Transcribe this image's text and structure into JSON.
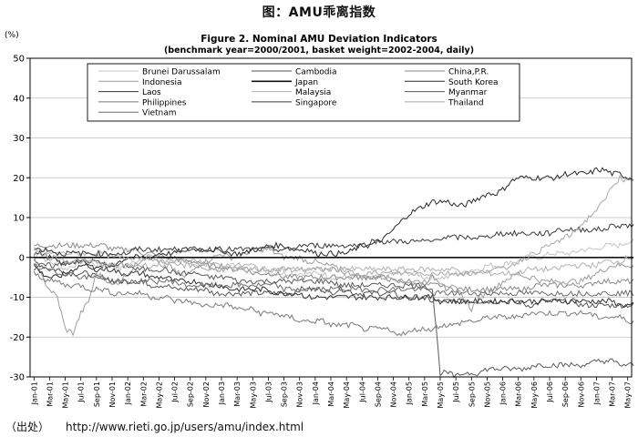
{
  "page": {
    "header": "图：AMU乖离指数",
    "source_label": "（出处）",
    "source_url": "http://www.rieti.go.jp/users/amu/index.html"
  },
  "chart_data": {
    "type": "line",
    "title": "Figure 2. Nominal AMU Deviation Indicators",
    "subtitle": "(benchmark year=2000/2001, basket weight=2002-2004, daily)",
    "ylabel": "(%)",
    "ylim": [
      -30,
      50
    ],
    "yticks": [
      -30,
      -20,
      -10,
      0,
      10,
      20,
      30,
      40,
      50
    ],
    "x_tick_labels": [
      "Jan-01",
      "Mar-01",
      "May-01",
      "Jul-01",
      "Sep-01",
      "Nov-01",
      "Jan-02",
      "Mar-02",
      "May-02",
      "Jul-02",
      "Sep-02",
      "Nov-02",
      "Jan-03",
      "Mar-03",
      "May-03",
      "Jul-03",
      "Sep-03",
      "Nov-03",
      "Jan-04",
      "Mar-04",
      "May-04",
      "Jul-04",
      "Sep-04",
      "Nov-04",
      "Jan-05",
      "Mar-05",
      "May-05",
      "Jul-05",
      "Sep-05",
      "Nov-05",
      "Jan-06",
      "Mar-06",
      "May-06",
      "Jul-06",
      "Sep-06",
      "Nov-06",
      "Jan-07",
      "Mar-07",
      "May-07"
    ],
    "x_months": [
      "Jan-01",
      "Feb-01",
      "Mar-01",
      "Apr-01",
      "May-01",
      "Jun-01",
      "Jul-01",
      "Aug-01",
      "Sep-01",
      "Oct-01",
      "Nov-01",
      "Dec-01",
      "Jan-02",
      "Feb-02",
      "Mar-02",
      "Apr-02",
      "May-02",
      "Jun-02",
      "Jul-02",
      "Aug-02",
      "Sep-02",
      "Oct-02",
      "Nov-02",
      "Dec-02",
      "Jan-03",
      "Feb-03",
      "Mar-03",
      "Apr-03",
      "May-03",
      "Jun-03",
      "Jul-03",
      "Aug-03",
      "Sep-03",
      "Oct-03",
      "Nov-03",
      "Dec-03",
      "Jan-04",
      "Feb-04",
      "Mar-04",
      "Apr-04",
      "May-04",
      "Jun-04",
      "Jul-04",
      "Aug-04",
      "Sep-04",
      "Oct-04",
      "Nov-04",
      "Dec-04",
      "Jan-05",
      "Feb-05",
      "Mar-05",
      "Apr-05",
      "May-05",
      "Jun-05",
      "Jul-05",
      "Aug-05",
      "Sep-05",
      "Oct-05",
      "Nov-05",
      "Dec-05",
      "Jan-06",
      "Feb-06",
      "Mar-06",
      "Apr-06",
      "May-06",
      "Jun-06",
      "Jul-06",
      "Aug-06",
      "Sep-06",
      "Oct-06",
      "Nov-06",
      "Dec-06",
      "Jan-07",
      "Feb-07",
      "Mar-07",
      "Apr-07",
      "May-07"
    ],
    "grid": "horizontal",
    "legend_position": "top-inside",
    "series": [
      {
        "name": "Brunei Darussalam",
        "color": "#c4c4c4",
        "width": 1,
        "values": [
          1,
          0,
          -1,
          -2,
          -3,
          -2,
          -1,
          -1,
          -2,
          -1,
          -2,
          -3,
          -2,
          -1,
          0,
          0,
          1,
          0,
          -1,
          -1,
          -1,
          -2,
          -2,
          -3,
          -3,
          -2,
          -2,
          -3,
          -3,
          -3,
          -4,
          -4,
          -4,
          -4,
          -4,
          -4,
          -4,
          -4,
          -5,
          -5,
          -5,
          -5,
          -5,
          -5,
          -5,
          -5,
          -4,
          -4,
          -4,
          -4,
          -5,
          -5,
          -5,
          -5,
          -4,
          -4,
          -3,
          -3,
          -2,
          -2,
          -2,
          -1,
          -1,
          0,
          0,
          0,
          1,
          1,
          1,
          1,
          2,
          2,
          2,
          3,
          3,
          3,
          4
        ]
      },
      {
        "name": "Cambodia",
        "color": "#555555",
        "width": 1,
        "values": [
          -1,
          -2,
          -3,
          -3,
          -4,
          -4,
          -4,
          -4,
          -5,
          -5,
          -6,
          -6,
          -6,
          -6,
          -6,
          -7,
          -7,
          -7,
          -8,
          -8,
          -8,
          -8,
          -8,
          -9,
          -9,
          -9,
          -9,
          -9,
          -9,
          -9,
          -9,
          -9,
          -9,
          -9,
          -8,
          -8,
          -8,
          -8,
          -9,
          -8,
          -8,
          -9,
          -9,
          -9,
          -9,
          -9,
          -9,
          -10,
          -10,
          -10,
          -10,
          -11,
          -11,
          -11,
          -11,
          -11,
          -11,
          -11,
          -11,
          -11,
          -11,
          -11,
          -11,
          -12,
          -12,
          -11,
          -11,
          -11,
          -11,
          -11,
          -12,
          -12,
          -12,
          -12,
          -12,
          -12,
          -12
        ]
      },
      {
        "name": "China,P.R.",
        "color": "#8a8a8a",
        "width": 1,
        "values": [
          3,
          3,
          3,
          3,
          3,
          3,
          3,
          3,
          3,
          3,
          2,
          2,
          2,
          2,
          1,
          1,
          0,
          0,
          0,
          -1,
          -1,
          -1,
          -2,
          -2,
          -2,
          -3,
          -3,
          -3,
          -4,
          -4,
          -4,
          -4,
          -5,
          -5,
          -5,
          -5,
          -5,
          -5,
          -5,
          -5,
          -5,
          -5,
          -5,
          -5,
          -5,
          -5,
          -6,
          -6,
          -6,
          -7,
          -7,
          -7,
          -7,
          -8,
          -8,
          -8,
          -8,
          -8,
          -8,
          -8,
          -8,
          -8,
          -8,
          -8,
          -7,
          -7,
          -7,
          -7,
          -7,
          -7,
          -7,
          -7,
          -6,
          -6,
          -6,
          -6,
          -6
        ]
      },
      {
        "name": "Indonesia",
        "color": "#9c9c9c",
        "width": 1,
        "values": [
          0,
          -5,
          -8,
          -10,
          -18,
          -19,
          -14,
          -11,
          -4,
          -5,
          -7,
          -6,
          -4,
          -2,
          0,
          0,
          -1,
          -2,
          -3,
          -5,
          -4,
          -2,
          -1,
          0,
          1,
          0,
          0,
          1,
          2,
          2,
          2,
          1,
          0,
          0,
          0,
          -1,
          -1,
          -2,
          -2,
          -3,
          -4,
          -4,
          -5,
          -5,
          -5,
          -5,
          -5,
          -6,
          -6,
          -6,
          -6,
          -5,
          -6,
          -7,
          -8,
          -10,
          -13,
          -10,
          -9,
          -8,
          -6,
          -5,
          -4,
          -5,
          -5,
          -6,
          -6,
          -6,
          -6,
          -6,
          -6,
          -5,
          -4,
          -3,
          -2,
          -2,
          -2
        ]
      },
      {
        "name": "Japan",
        "color": "#111111",
        "width": 1.6,
        "values": [
          0,
          0,
          0,
          0,
          0,
          0,
          0,
          0,
          0,
          0,
          0,
          0,
          0,
          0,
          0,
          0,
          0,
          0,
          0,
          0,
          0,
          0,
          0,
          0,
          0,
          0,
          0,
          0,
          0,
          0,
          0,
          0,
          0,
          0,
          0,
          0,
          0,
          0,
          0,
          0,
          0,
          0,
          0,
          0,
          0,
          0,
          0,
          0,
          0,
          0,
          0,
          0,
          0,
          0,
          0,
          0,
          0,
          0,
          0,
          0,
          0,
          0,
          0,
          0,
          0,
          0,
          0,
          0,
          0,
          0,
          0,
          0,
          0,
          0,
          0,
          0,
          0
        ]
      },
      {
        "name": "South Korea",
        "color": "#2a2a2a",
        "width": 1,
        "values": [
          -2,
          -4,
          -5,
          -5,
          -4,
          -3,
          -2,
          -2,
          -3,
          -2,
          -2,
          -1,
          0,
          0,
          0,
          0,
          1,
          1,
          1,
          2,
          2,
          2,
          2,
          2,
          2,
          1,
          1,
          1,
          2,
          2,
          3,
          3,
          3,
          2,
          2,
          2,
          1,
          1,
          1,
          1,
          1,
          2,
          3,
          3,
          4,
          5,
          7,
          9,
          11,
          12,
          13,
          14,
          14,
          14,
          13,
          13,
          14,
          15,
          16,
          16,
          17,
          19,
          20,
          20,
          20,
          20,
          20,
          20,
          21,
          21,
          21,
          21,
          22,
          22,
          21,
          21,
          20
        ]
      },
      {
        "name": "Laos",
        "color": "#333333",
        "width": 1,
        "values": [
          1,
          1,
          0,
          -1,
          -2,
          -1,
          -1,
          -2,
          -3,
          -3,
          -3,
          -4,
          -4,
          -4,
          -4,
          -5,
          -5,
          -5,
          -6,
          -6,
          -6,
          -6,
          -7,
          -7,
          -7,
          -8,
          -8,
          -8,
          -8,
          -8,
          -8,
          -9,
          -9,
          -9,
          -9,
          -10,
          -10,
          -10,
          -10,
          -10,
          -10,
          -10,
          -10,
          -10,
          -10,
          -10,
          -10,
          -10,
          -10,
          -10,
          -10,
          -10,
          -11,
          -11,
          -11,
          -11,
          -11,
          -11,
          -11,
          -11,
          -11,
          -11,
          -11,
          -11,
          -11,
          -11,
          -11,
          -11,
          -11,
          -11,
          -11,
          -11,
          -11,
          -11,
          -11,
          -12,
          -12
        ]
      },
      {
        "name": "Malaysia",
        "color": "#b0b0b0",
        "width": 1,
        "values": [
          2,
          2,
          1,
          1,
          1,
          1,
          1,
          1,
          1,
          1,
          0,
          0,
          0,
          0,
          0,
          0,
          -1,
          -1,
          -1,
          -1,
          -1,
          -1,
          -1,
          -2,
          -2,
          -2,
          -2,
          -2,
          -2,
          -3,
          -3,
          -3,
          -3,
          -3,
          -3,
          -3,
          -3,
          -3,
          -3,
          -3,
          -3,
          -3,
          -3,
          -3,
          -3,
          -3,
          -3,
          -3,
          -3,
          -3,
          -3,
          -3,
          -3,
          -3,
          -3,
          -4,
          -4,
          -4,
          -4,
          -4,
          -4,
          -4,
          -4,
          -3,
          -3,
          -3,
          -3,
          -3,
          -2,
          -2,
          -2,
          -2,
          -2,
          -1,
          -1,
          -1,
          0
        ]
      },
      {
        "name": "Myanmar",
        "color": "#5a5a5a",
        "width": 1,
        "values": [
          -3,
          -2,
          -2,
          -2,
          -1,
          -1,
          -1,
          -1,
          -1,
          -2,
          -2,
          -2,
          -2,
          -3,
          -3,
          -3,
          -3,
          -3,
          -4,
          -4,
          -4,
          -4,
          -5,
          -5,
          -5,
          -5,
          -6,
          -6,
          -6,
          -6,
          -6,
          -6,
          -6,
          -6,
          -6,
          -6,
          -6,
          -6,
          -6,
          -7,
          -7,
          -7,
          -7,
          -7,
          -7,
          -7,
          -7,
          -7,
          -7,
          -7,
          -7,
          -8,
          -29,
          -29,
          -30,
          -29,
          -29,
          -29,
          -28,
          -28,
          -28,
          -28,
          -28,
          -28,
          -27,
          -27,
          -27,
          -27,
          -27,
          -27,
          -27,
          -27,
          -26,
          -26,
          -26,
          -27,
          -27
        ]
      },
      {
        "name": "Philippines",
        "color": "#7a7a7a",
        "width": 1,
        "values": [
          -4,
          -5,
          -6,
          -6,
          -7,
          -7,
          -7,
          -8,
          -8,
          -8,
          -9,
          -9,
          -9,
          -9,
          -9,
          -10,
          -10,
          -10,
          -11,
          -11,
          -11,
          -12,
          -12,
          -12,
          -12,
          -12,
          -13,
          -13,
          -13,
          -14,
          -14,
          -14,
          -15,
          -15,
          -16,
          -16,
          -16,
          -16,
          -17,
          -17,
          -17,
          -17,
          -18,
          -18,
          -18,
          -18,
          -19,
          -19,
          -19,
          -18,
          -18,
          -18,
          -17,
          -17,
          -17,
          -16,
          -16,
          -16,
          -15,
          -15,
          -15,
          -15,
          -15,
          -14,
          -14,
          -14,
          -14,
          -14,
          -14,
          -14,
          -14,
          -14,
          -15,
          -15,
          -15,
          -15,
          -16
        ]
      },
      {
        "name": "Singapore",
        "color": "#3a3a3a",
        "width": 1,
        "values": [
          2,
          2,
          2,
          1,
          1,
          1,
          1,
          1,
          1,
          1,
          1,
          1,
          1,
          2,
          2,
          2,
          2,
          2,
          2,
          2,
          2,
          2,
          2,
          2,
          2,
          2,
          2,
          2,
          2,
          2,
          2,
          2,
          2,
          2,
          3,
          3,
          3,
          3,
          3,
          3,
          3,
          3,
          3,
          4,
          4,
          4,
          4,
          4,
          4,
          4,
          4,
          4,
          5,
          5,
          5,
          5,
          5,
          5,
          5,
          6,
          6,
          6,
          6,
          6,
          6,
          6,
          6,
          7,
          7,
          7,
          7,
          7,
          7,
          7,
          8,
          8,
          8
        ]
      },
      {
        "name": "Thailand",
        "color": "#a8a8a8",
        "width": 1,
        "values": [
          1,
          1,
          0,
          0,
          -1,
          -1,
          -1,
          -1,
          -1,
          -2,
          -2,
          -2,
          -2,
          -2,
          -2,
          -2,
          -2,
          -2,
          -2,
          -2,
          -2,
          -2,
          -3,
          -3,
          -3,
          -3,
          -3,
          -3,
          -3,
          -3,
          -3,
          -3,
          -3,
          -3,
          -3,
          -3,
          -3,
          -3,
          -3,
          -3,
          -3,
          -4,
          -4,
          -4,
          -4,
          -4,
          -4,
          -4,
          -4,
          -4,
          -4,
          -4,
          -4,
          -4,
          -4,
          -4,
          -4,
          -4,
          -3,
          -3,
          -3,
          -2,
          -1,
          0,
          1,
          2,
          3,
          4,
          5,
          6,
          8,
          10,
          12,
          14,
          18,
          20,
          19
        ]
      },
      {
        "name": "Vietnam",
        "color": "#6a6a6a",
        "width": 1,
        "values": [
          -2,
          -3,
          -3,
          -4,
          -4,
          -4,
          -5,
          -5,
          -5,
          -5,
          -6,
          -6,
          -6,
          -6,
          -6,
          -6,
          -6,
          -6,
          -6,
          -7,
          -7,
          -7,
          -7,
          -7,
          -7,
          -7,
          -7,
          -7,
          -7,
          -7,
          -7,
          -7,
          -8,
          -8,
          -8,
          -8,
          -8,
          -8,
          -8,
          -8,
          -8,
          -8,
          -8,
          -8,
          -8,
          -8,
          -8,
          -8,
          -8,
          -8,
          -8,
          -9,
          -9,
          -9,
          -9,
          -9,
          -9,
          -9,
          -9,
          -9,
          -9,
          -9,
          -9,
          -9,
          -9,
          -9,
          -9,
          -9,
          -9,
          -9,
          -9,
          -9,
          -9,
          -9,
          -9,
          -9,
          -9
        ]
      }
    ]
  }
}
